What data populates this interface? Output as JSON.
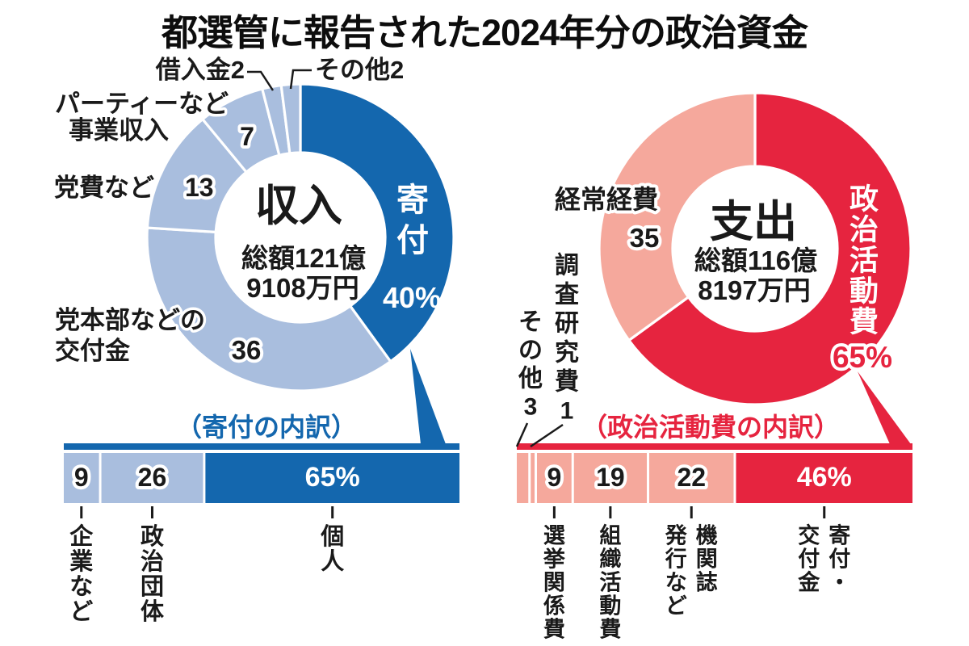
{
  "title": "都選管に報告された2024年分の政治資金",
  "colors": {
    "dark_blue": "#1467ae",
    "light_blue": "#a9bede",
    "red": "#e6243f",
    "pink": "#f5a89c",
    "text": "#1a1a1a",
    "background": "#ffffff"
  },
  "chart_data": [
    {
      "id": "income-donut",
      "type": "pie",
      "title": "収入",
      "subtitle_lines": [
        "総額121億",
        "9108万円"
      ],
      "segments": [
        {
          "label": "寄付",
          "value": 40,
          "display": "40%",
          "color": "#1467ae",
          "emphasis": true
        },
        {
          "label": "党本部などの交付金",
          "label_lines": [
            "党本部などの",
            "交付金"
          ],
          "value": 36,
          "display": "36",
          "color": "#a9bede"
        },
        {
          "label": "党費など",
          "value": 13,
          "display": "13",
          "color": "#a9bede"
        },
        {
          "label": "パーティーなど事業収入",
          "label_lines": [
            "パーティーなど",
            "事業収入"
          ],
          "value": 7,
          "display": "7",
          "color": "#a9bede"
        },
        {
          "label": "借入金",
          "value": 2,
          "display": "2",
          "color": "#a9bede"
        },
        {
          "label": "その他",
          "value": 2,
          "display": "2",
          "color": "#a9bede"
        }
      ]
    },
    {
      "id": "donation-breakdown",
      "type": "bar",
      "title": "（寄付の内訳）",
      "segments": [
        {
          "label": "企業など",
          "value": 9,
          "display": "9",
          "color": "#a9bede"
        },
        {
          "label": "政治団体",
          "value": 26,
          "display": "26",
          "color": "#a9bede"
        },
        {
          "label": "個人",
          "value": 65,
          "display": "65%",
          "color": "#1467ae",
          "emphasis": true
        }
      ]
    },
    {
      "id": "expense-donut",
      "type": "pie",
      "title": "支出",
      "subtitle_lines": [
        "総額116億",
        "8197万円"
      ],
      "segments": [
        {
          "label": "政治活動費",
          "value": 65,
          "display": "65%",
          "color": "#e6243f",
          "emphasis": true
        },
        {
          "label": "経常経費",
          "value": 35,
          "display": "35",
          "color": "#f5a89c"
        }
      ]
    },
    {
      "id": "activity-breakdown",
      "type": "bar",
      "title": "（政治活動費の内訳）",
      "segments": [
        {
          "label": "その他",
          "value": 3,
          "display": "3",
          "color": "#f5a89c"
        },
        {
          "label": "調査研究費",
          "value": 1,
          "display": "1",
          "color": "#f5a89c"
        },
        {
          "label": "選挙関係費",
          "value": 9,
          "display": "9",
          "color": "#f5a89c"
        },
        {
          "label": "組織活動費",
          "value": 19,
          "display": "19",
          "color": "#f5a89c"
        },
        {
          "label": "機関誌発行など",
          "label_lines": [
            "機関誌",
            "発行など"
          ],
          "value": 22,
          "display": "22",
          "color": "#f5a89c"
        },
        {
          "label": "寄付・交付金",
          "label_lines": [
            "寄付・",
            "交付金"
          ],
          "value": 46,
          "display": "46%",
          "color": "#e6243f",
          "emphasis": true
        }
      ]
    }
  ]
}
